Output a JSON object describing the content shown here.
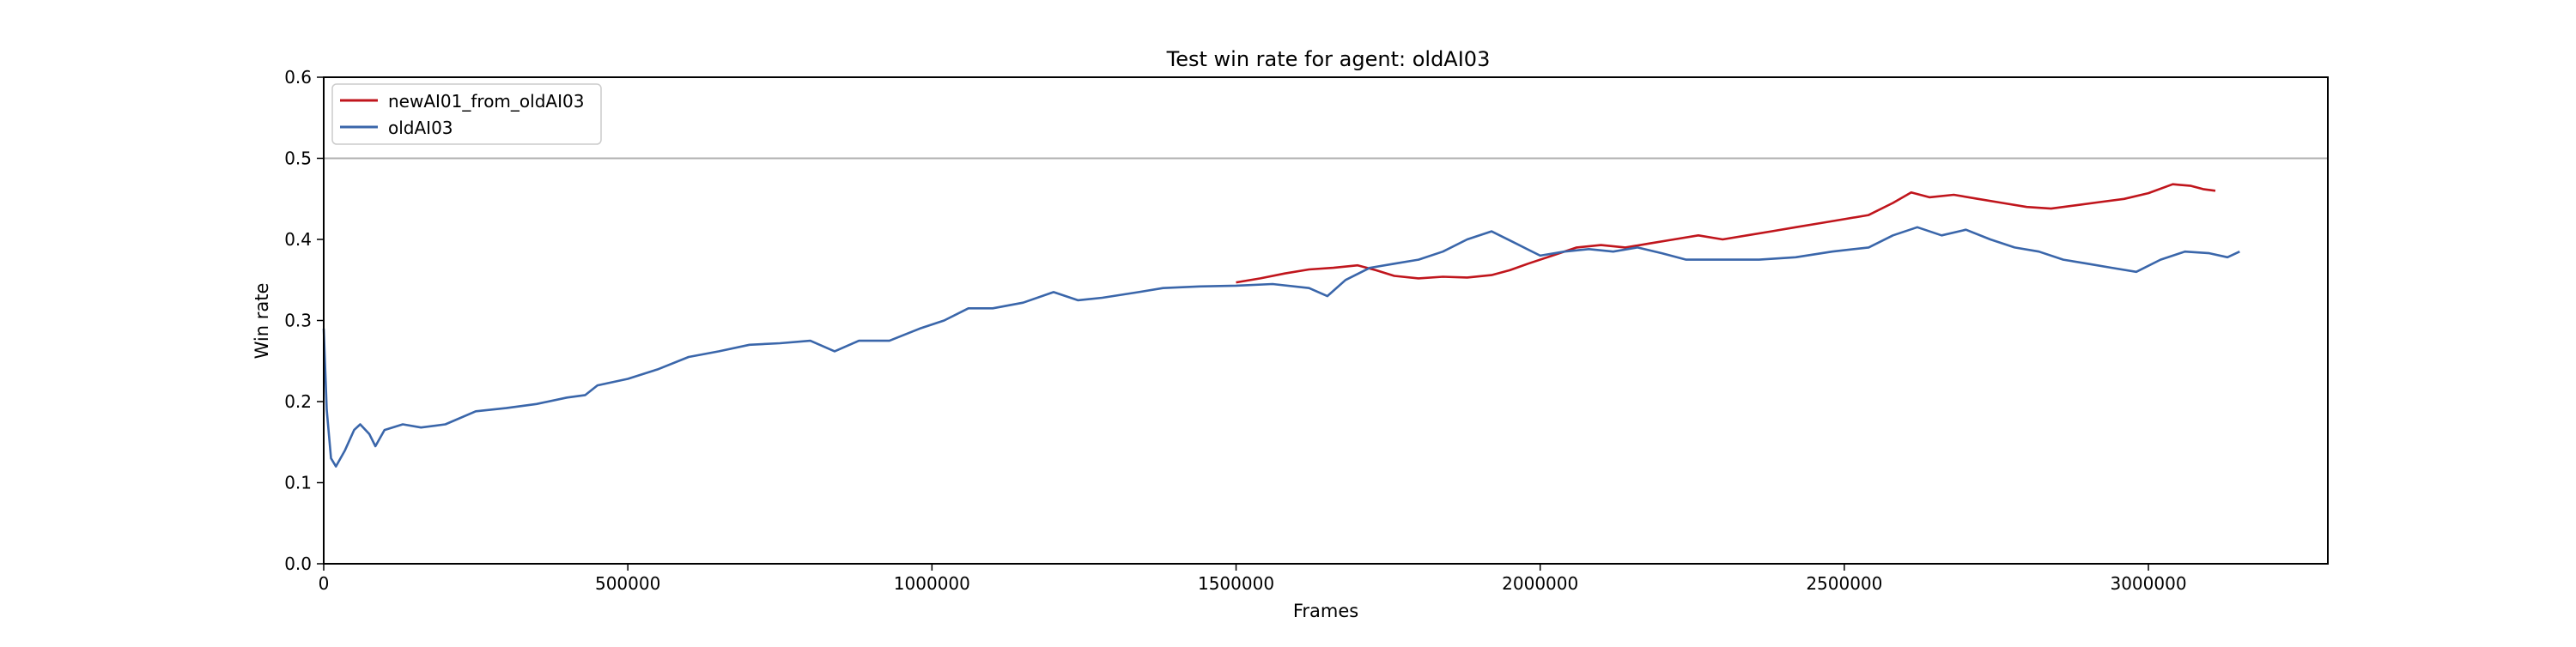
{
  "chart_data": {
    "type": "line",
    "title": "Test win rate for agent: oldAI03",
    "xlabel": "Frames",
    "ylabel": "Win rate",
    "xlim": [
      0,
      3295000
    ],
    "ylim": [
      0,
      0.6
    ],
    "x_ticks": [
      0,
      500000,
      1000000,
      1500000,
      2000000,
      2500000,
      3000000
    ],
    "x_tick_labels": [
      "0",
      "500000",
      "1000000",
      "1500000",
      "2000000",
      "2500000",
      "3000000"
    ],
    "y_ticks": [
      0.0,
      0.1,
      0.2,
      0.3,
      0.4,
      0.5,
      0.6
    ],
    "y_tick_labels": [
      "0.0",
      "0.1",
      "0.2",
      "0.3",
      "0.4",
      "0.5",
      "0.6"
    ],
    "grid": false,
    "legend_position": "top-left",
    "reference_line": {
      "y": 0.5,
      "color": "#b0b0b0"
    },
    "series": [
      {
        "name": "newAI01_from_oldAI03",
        "color": "#c0151c",
        "points": [
          [
            1500000,
            0.347
          ],
          [
            1540000,
            0.352
          ],
          [
            1580000,
            0.358
          ],
          [
            1620000,
            0.363
          ],
          [
            1660000,
            0.365
          ],
          [
            1700000,
            0.368
          ],
          [
            1730000,
            0.362
          ],
          [
            1760000,
            0.355
          ],
          [
            1800000,
            0.352
          ],
          [
            1840000,
            0.354
          ],
          [
            1880000,
            0.353
          ],
          [
            1920000,
            0.356
          ],
          [
            1950000,
            0.362
          ],
          [
            1980000,
            0.37
          ],
          [
            2020000,
            0.38
          ],
          [
            2060000,
            0.39
          ],
          [
            2100000,
            0.393
          ],
          [
            2140000,
            0.39
          ],
          [
            2180000,
            0.395
          ],
          [
            2220000,
            0.4
          ],
          [
            2260000,
            0.405
          ],
          [
            2300000,
            0.4
          ],
          [
            2340000,
            0.405
          ],
          [
            2380000,
            0.41
          ],
          [
            2420000,
            0.415
          ],
          [
            2460000,
            0.42
          ],
          [
            2500000,
            0.425
          ],
          [
            2540000,
            0.43
          ],
          [
            2580000,
            0.445
          ],
          [
            2610000,
            0.458
          ],
          [
            2640000,
            0.452
          ],
          [
            2680000,
            0.455
          ],
          [
            2720000,
            0.45
          ],
          [
            2760000,
            0.445
          ],
          [
            2800000,
            0.44
          ],
          [
            2840000,
            0.438
          ],
          [
            2880000,
            0.442
          ],
          [
            2920000,
            0.446
          ],
          [
            2960000,
            0.45
          ],
          [
            3000000,
            0.457
          ],
          [
            3040000,
            0.468
          ],
          [
            3070000,
            0.466
          ],
          [
            3090000,
            0.462
          ],
          [
            3110000,
            0.46
          ]
        ]
      },
      {
        "name": "oldAI03",
        "color": "#3a66aa",
        "points": [
          [
            0,
            0.29
          ],
          [
            5000,
            0.19
          ],
          [
            12000,
            0.13
          ],
          [
            20000,
            0.12
          ],
          [
            35000,
            0.14
          ],
          [
            50000,
            0.165
          ],
          [
            60000,
            0.172
          ],
          [
            75000,
            0.16
          ],
          [
            85000,
            0.145
          ],
          [
            100000,
            0.165
          ],
          [
            130000,
            0.172
          ],
          [
            160000,
            0.168
          ],
          [
            200000,
            0.172
          ],
          [
            250000,
            0.188
          ],
          [
            300000,
            0.192
          ],
          [
            350000,
            0.197
          ],
          [
            400000,
            0.205
          ],
          [
            430000,
            0.208
          ],
          [
            450000,
            0.22
          ],
          [
            500000,
            0.228
          ],
          [
            550000,
            0.24
          ],
          [
            600000,
            0.255
          ],
          [
            650000,
            0.262
          ],
          [
            700000,
            0.27
          ],
          [
            750000,
            0.272
          ],
          [
            800000,
            0.275
          ],
          [
            840000,
            0.262
          ],
          [
            880000,
            0.275
          ],
          [
            930000,
            0.275
          ],
          [
            980000,
            0.29
          ],
          [
            1020000,
            0.3
          ],
          [
            1060000,
            0.315
          ],
          [
            1100000,
            0.315
          ],
          [
            1150000,
            0.322
          ],
          [
            1200000,
            0.335
          ],
          [
            1240000,
            0.325
          ],
          [
            1280000,
            0.328
          ],
          [
            1340000,
            0.335
          ],
          [
            1380000,
            0.34
          ],
          [
            1440000,
            0.342
          ],
          [
            1500000,
            0.343
          ],
          [
            1560000,
            0.345
          ],
          [
            1620000,
            0.34
          ],
          [
            1650000,
            0.33
          ],
          [
            1680000,
            0.35
          ],
          [
            1720000,
            0.365
          ],
          [
            1760000,
            0.37
          ],
          [
            1800000,
            0.375
          ],
          [
            1840000,
            0.385
          ],
          [
            1880000,
            0.4
          ],
          [
            1920000,
            0.41
          ],
          [
            1960000,
            0.395
          ],
          [
            2000000,
            0.38
          ],
          [
            2040000,
            0.385
          ],
          [
            2080000,
            0.388
          ],
          [
            2120000,
            0.385
          ],
          [
            2160000,
            0.39
          ],
          [
            2200000,
            0.383
          ],
          [
            2240000,
            0.375
          ],
          [
            2300000,
            0.375
          ],
          [
            2360000,
            0.375
          ],
          [
            2420000,
            0.378
          ],
          [
            2480000,
            0.385
          ],
          [
            2540000,
            0.39
          ],
          [
            2580000,
            0.405
          ],
          [
            2620000,
            0.415
          ],
          [
            2660000,
            0.405
          ],
          [
            2700000,
            0.412
          ],
          [
            2740000,
            0.4
          ],
          [
            2780000,
            0.39
          ],
          [
            2820000,
            0.385
          ],
          [
            2860000,
            0.375
          ],
          [
            2900000,
            0.37
          ],
          [
            2940000,
            0.365
          ],
          [
            2980000,
            0.36
          ],
          [
            3020000,
            0.375
          ],
          [
            3060000,
            0.385
          ],
          [
            3100000,
            0.383
          ],
          [
            3130000,
            0.378
          ],
          [
            3150000,
            0.385
          ]
        ]
      }
    ]
  }
}
